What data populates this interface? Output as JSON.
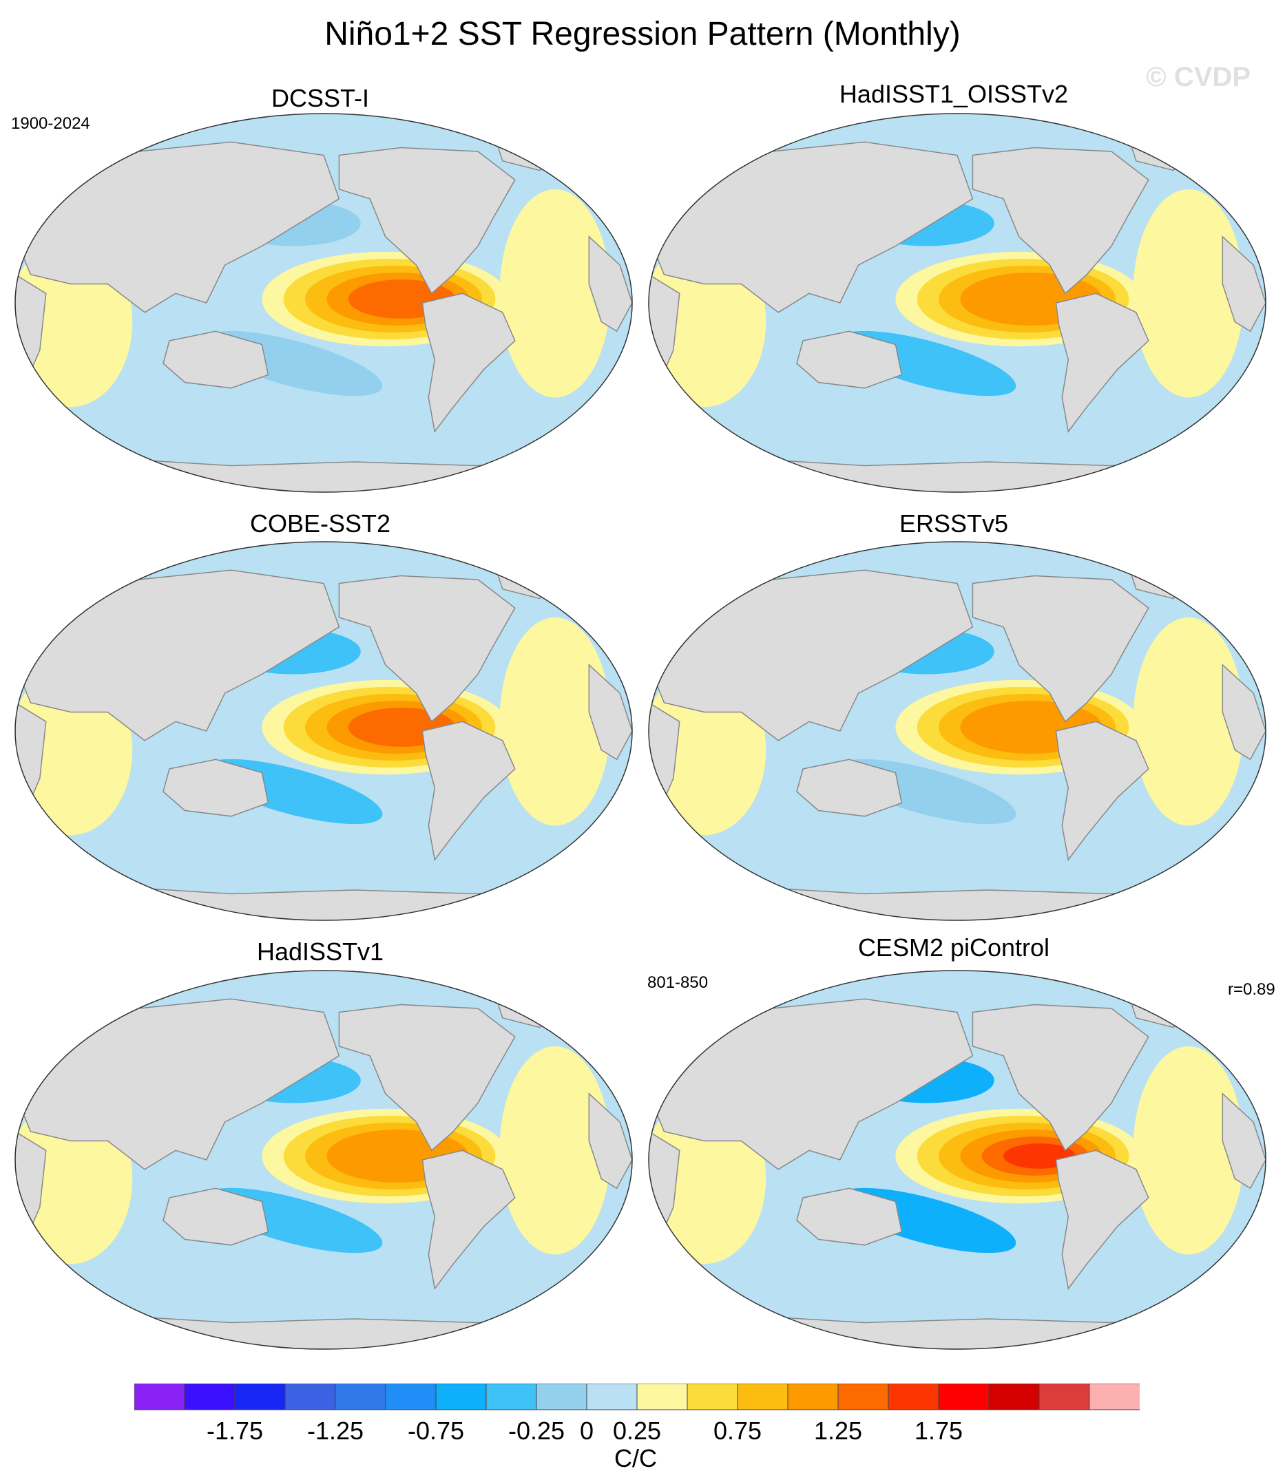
{
  "title": "Niño1+2 SST Regression Pattern (Monthly)",
  "watermark": "© CVDP",
  "period_obs": "1900-2024",
  "period_model": "801-850",
  "correlation": "r=0.89",
  "panels": [
    {
      "title": "DCSST-I",
      "tropical_max": 1.3,
      "north_pacific_min": -0.15,
      "south_pacific_min": -0.1
    },
    {
      "title": "HadISST1_OISSTv2",
      "tropical_max": 1.1,
      "north_pacific_min": -0.45,
      "south_pacific_min": -0.4
    },
    {
      "title": "COBE-SST2",
      "tropical_max": 1.3,
      "north_pacific_min": -0.35,
      "south_pacific_min": -0.3
    },
    {
      "title": "ERSSTv5",
      "tropical_max": 1.1,
      "north_pacific_min": -0.3,
      "south_pacific_min": -0.2
    },
    {
      "title": "HadISSTv1",
      "tropical_max": 1.1,
      "north_pacific_min": -0.4,
      "south_pacific_min": -0.35
    },
    {
      "title": "CESM2 piControl",
      "tropical_max": 1.6,
      "north_pacific_min": -0.6,
      "south_pacific_min": -0.65
    }
  ],
  "colorbar": {
    "units": "C/C",
    "levels": [
      -2.0,
      -1.75,
      -1.5,
      -1.25,
      -1.0,
      -0.75,
      -0.5,
      -0.25,
      0,
      0.25,
      0.5,
      0.75,
      1.0,
      1.25,
      1.5,
      1.75,
      2.0
    ],
    "tick_labels": [
      "-1.75",
      "-1.25",
      "-0.75",
      "-0.25",
      "0",
      "0.25",
      "0.75",
      "1.25",
      "1.75"
    ],
    "colors": [
      "#8a21f5",
      "#3a10ff",
      "#1526f5",
      "#3b62e3",
      "#2f7ae8",
      "#1f8ff7",
      "#0fb0fb",
      "#3fc2f8",
      "#92d0ee",
      "#b9e1f3",
      "#fdf7a0",
      "#fcdc3a",
      "#fdbc10",
      "#fd9a00",
      "#fd6a00",
      "#fd3500",
      "#ff0000",
      "#d40000",
      "#dc3c3c",
      "#fdb0b0"
    ]
  },
  "land_color": "#dcdcdc"
}
